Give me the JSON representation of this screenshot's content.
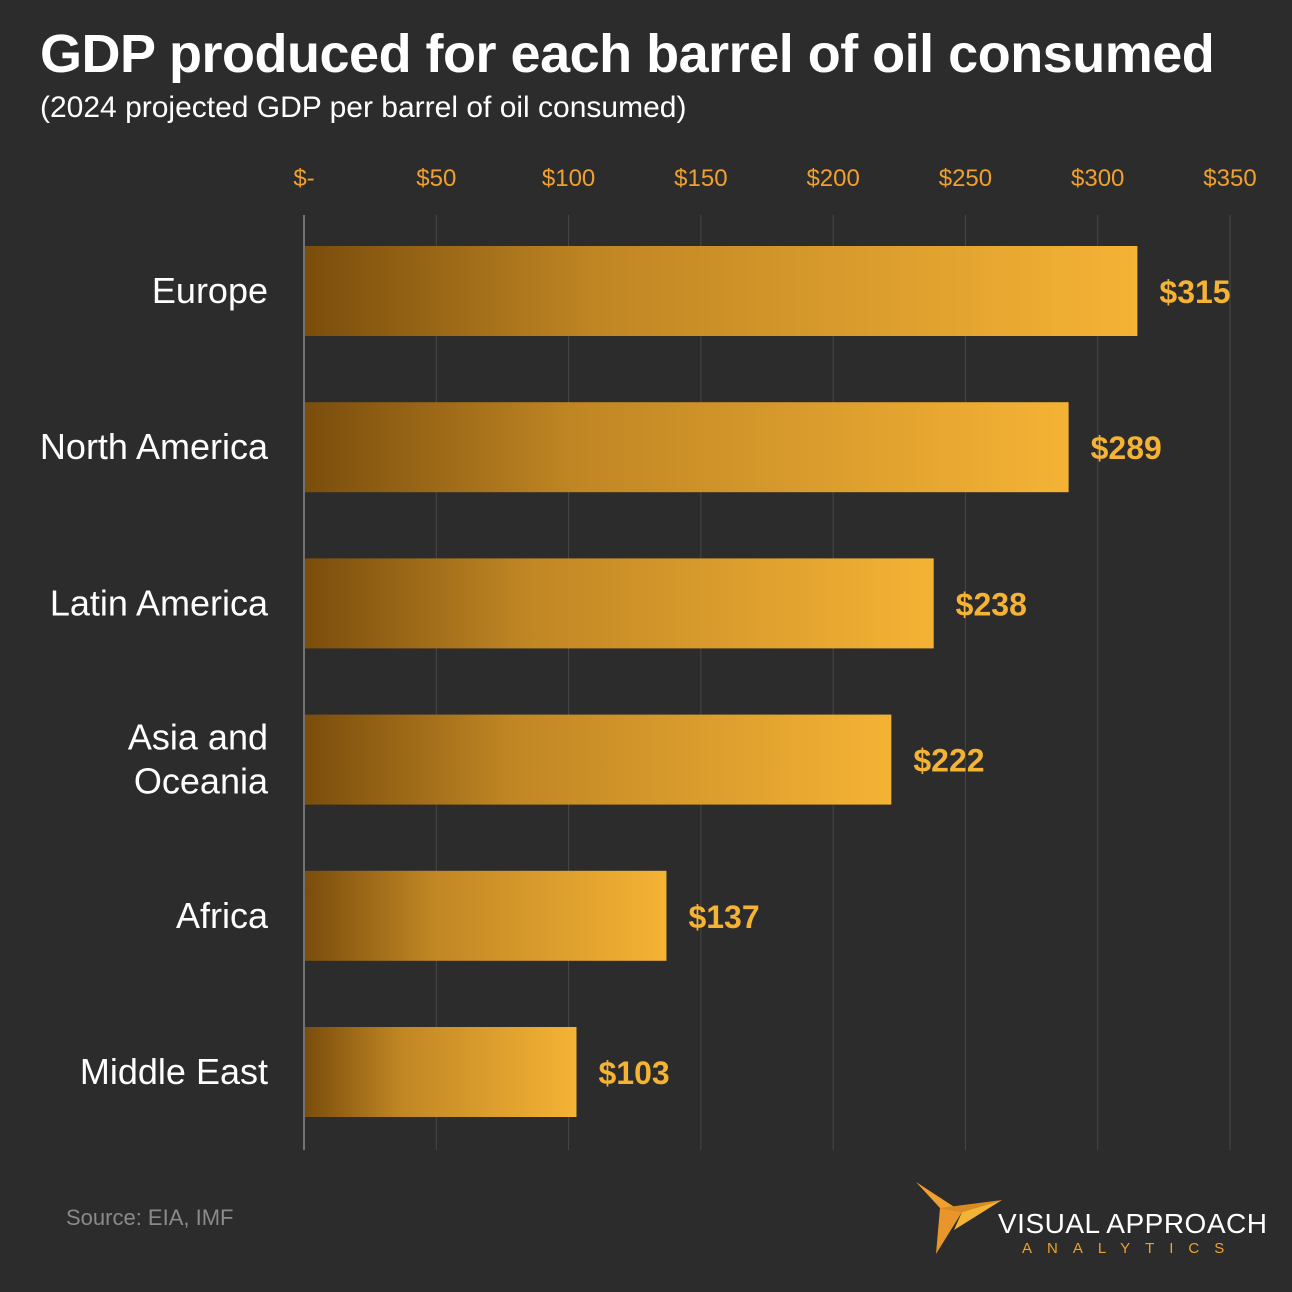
{
  "header": {
    "title": "GDP produced for each barrel of oil consumed",
    "subtitle": "(2024 projected GDP per barrel of oil consumed)"
  },
  "footer": {
    "source": "Source:  EIA, IMF"
  },
  "brand": {
    "name": "VISUAL APPROACH",
    "tagline": "ANALYTICS"
  },
  "colors": {
    "background": "#2c2c2c",
    "accent": "#f5b335",
    "bar_dark": "#7a4d0c",
    "axis_label": "#f0a030",
    "text": "#ffffff"
  },
  "chart_data": {
    "type": "bar",
    "orientation": "horizontal",
    "title": "GDP produced for each barrel of oil consumed",
    "subtitle": "(2024 projected GDP per barrel of oil consumed)",
    "xlabel": "",
    "ylabel": "",
    "xlim": [
      0,
      350
    ],
    "x_ticks": [
      0,
      50,
      100,
      150,
      200,
      250,
      300,
      350
    ],
    "x_tick_labels": [
      "$-",
      "$50",
      "$100",
      "$150",
      "$200",
      "$250",
      "$300",
      "$350"
    ],
    "axis_position": "top",
    "grid": true,
    "categories": [
      [
        "Europe"
      ],
      [
        "North America"
      ],
      [
        "Latin America"
      ],
      [
        "Asia and",
        "Oceania"
      ],
      [
        "Africa"
      ],
      [
        "Middle East"
      ]
    ],
    "values": [
      315,
      289,
      238,
      222,
      137,
      103
    ],
    "value_labels": [
      "$315",
      "$289",
      "$238",
      "$222",
      "$137",
      "$103"
    ]
  }
}
